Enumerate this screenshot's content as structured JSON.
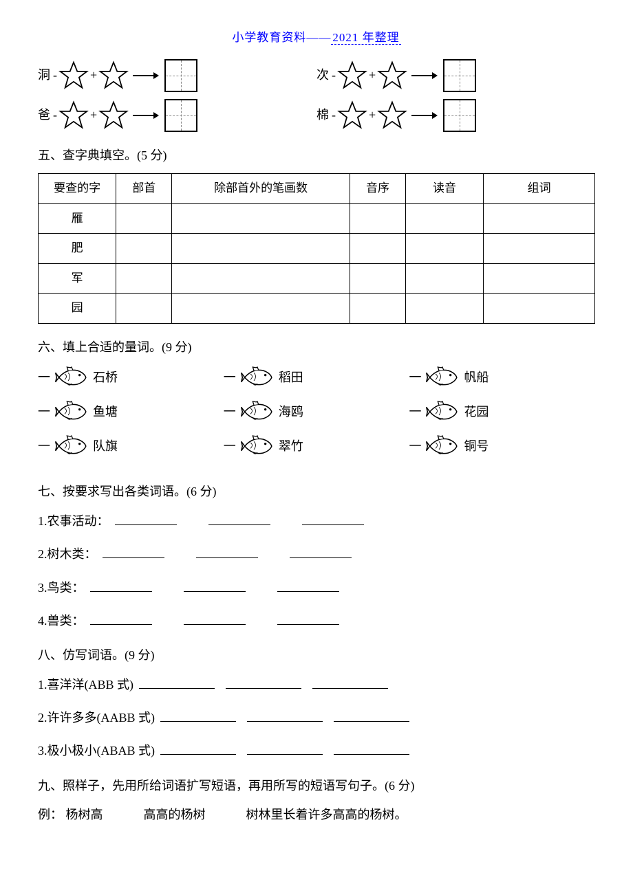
{
  "header": {
    "prefix": "小学教育资料——",
    "year": "2021 年整理"
  },
  "star_rows": [
    [
      {
        "label": "洞",
        "op1": "-",
        "op2": "+"
      },
      {
        "label": "次",
        "op1": "-",
        "op2": "+"
      }
    ],
    [
      {
        "label": "爸",
        "op1": "-",
        "op2": "+"
      },
      {
        "label": "棉",
        "op1": "-",
        "op2": "+"
      }
    ]
  ],
  "section5": {
    "title": "五、查字典填空。(5 分)",
    "headers": [
      "要查的字",
      "部首",
      "除部首外的笔画数",
      "音序",
      "读音",
      "组词"
    ],
    "col_widths": [
      "14%",
      "10%",
      "32%",
      "10%",
      "14%",
      "20%"
    ],
    "rows": [
      "雁",
      "肥",
      "军",
      "园"
    ]
  },
  "section6": {
    "title": "六、填上合适的量词。(9 分)",
    "pre": "一",
    "items": [
      "石桥",
      "稻田",
      "帆船",
      "鱼塘",
      "海鸥",
      "花园",
      "队旗",
      "翠竹",
      "铜号"
    ]
  },
  "section7": {
    "title": "七、按要求写出各类词语。(6 分)",
    "lines": [
      {
        "label": "1.农事活动：",
        "blanks": 3
      },
      {
        "label": "2.树木类：",
        "blanks": 3
      },
      {
        "label": "3.鸟类：",
        "blanks": 3
      },
      {
        "label": "4.兽类：",
        "blanks": 3
      }
    ]
  },
  "section8": {
    "title": "八、仿写词语。(9 分)",
    "lines": [
      {
        "label": "1.喜洋洋(ABB 式)",
        "blanks": 3
      },
      {
        "label": "2.许许多多(AABB 式)",
        "blanks": 3
      },
      {
        "label": "3.极小极小(ABAB 式)",
        "blanks": 3
      }
    ]
  },
  "section9": {
    "title": "九、照样子，先用所给词语扩写短语，再用所写的短语写句子。(6 分)",
    "example_label": "例：",
    "example_a": "杨树高",
    "example_b": "高高的杨树",
    "example_c": "树林里长着许多高高的杨树。"
  },
  "svg": {
    "star_stroke": "#000000",
    "star_fill": "#ffffff",
    "arrow_color": "#000000",
    "fish_stroke": "#000000",
    "fish_fill": "#ffffff"
  }
}
